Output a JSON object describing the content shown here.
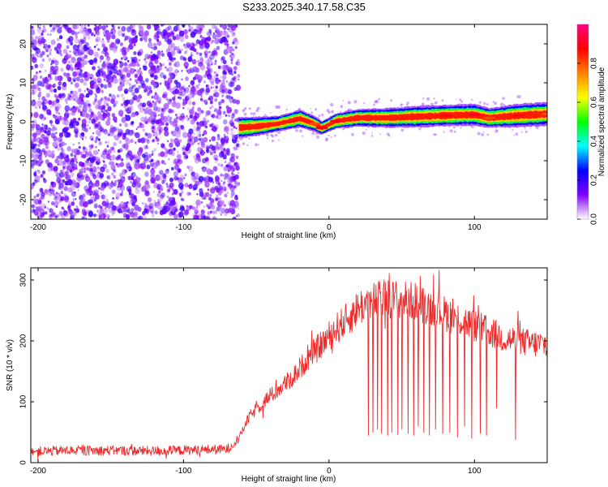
{
  "title": "S233.2025.340.17.58.C35",
  "chart_data": [
    {
      "type": "heatmap",
      "xlabel": "Height of straight line (km)",
      "ylabel": "Frequency (Hz)",
      "xlim": [
        -205,
        150
      ],
      "ylim": [
        -25,
        25
      ],
      "xticks": [
        -200,
        -100,
        0,
        100
      ],
      "yticks": [
        -20,
        -10,
        0,
        10,
        20
      ],
      "colorbar": {
        "label": "Normalized spectral amplitude",
        "ticks": [
          0.0,
          0.2,
          0.4,
          0.6,
          0.8
        ],
        "range": [
          0,
          1
        ],
        "colors": [
          "#ffffff",
          "#8000ff",
          "#0000ff",
          "#00ffff",
          "#00ff00",
          "#ffff00",
          "#ff8000",
          "#ff0000",
          "#ff0080"
        ]
      },
      "noise_region": {
        "x_from": -205,
        "x_to": -62,
        "y_from": -25,
        "y_to": 25,
        "amplitude_range": [
          0.05,
          0.2
        ]
      },
      "ridge": [
        {
          "x": -62,
          "freq": -1.5,
          "width": 2.2,
          "peak": 0.55
        },
        {
          "x": -50,
          "freq": -1.2,
          "width": 2.0,
          "peak": 0.6
        },
        {
          "x": -35,
          "freq": -0.5,
          "width": 1.6,
          "peak": 0.75
        },
        {
          "x": -20,
          "freq": 0.8,
          "width": 1.8,
          "peak": 0.85
        },
        {
          "x": -10,
          "freq": -0.5,
          "width": 1.6,
          "peak": 0.8
        },
        {
          "x": -5,
          "freq": -1.6,
          "width": 1.4,
          "peak": 0.9
        },
        {
          "x": 5,
          "freq": 0.2,
          "width": 1.6,
          "peak": 0.9
        },
        {
          "x": 20,
          "freq": 1.0,
          "width": 1.8,
          "peak": 0.85
        },
        {
          "x": 40,
          "freq": 1.0,
          "width": 2.0,
          "peak": 0.75
        },
        {
          "x": 60,
          "freq": 1.3,
          "width": 2.2,
          "peak": 0.7
        },
        {
          "x": 80,
          "freq": 1.6,
          "width": 2.2,
          "peak": 0.9
        },
        {
          "x": 100,
          "freq": 1.8,
          "width": 2.2,
          "peak": 0.9
        },
        {
          "x": 110,
          "freq": 1.0,
          "width": 2.0,
          "peak": 0.8
        },
        {
          "x": 130,
          "freq": 1.6,
          "width": 2.4,
          "peak": 0.9
        },
        {
          "x": 150,
          "freq": 2.0,
          "width": 2.4,
          "peak": 0.8
        }
      ]
    },
    {
      "type": "line",
      "xlabel": "Height of straight line (km)",
      "ylabel": "SNR (10 * v/v)",
      "xlim": [
        -205,
        150
      ],
      "ylim": [
        0,
        320
      ],
      "xticks": [
        -200,
        -100,
        0,
        100
      ],
      "yticks": [
        0,
        100,
        200,
        300
      ],
      "color": "#ee2a2a",
      "series": [
        {
          "name": "SNR",
          "x": [
            -205,
            -180,
            -150,
            -120,
            -90,
            -70,
            -62,
            -55,
            -45,
            -35,
            -25,
            -15,
            -5,
            5,
            15,
            20,
            30,
            40,
            50,
            60,
            70,
            80,
            90,
            100,
            110,
            120,
            130,
            140,
            150
          ],
          "values": [
            18,
            20,
            20,
            19,
            21,
            22,
            40,
            75,
            100,
            120,
            140,
            170,
            195,
            220,
            240,
            255,
            265,
            270,
            268,
            265,
            255,
            245,
            235,
            225,
            215,
            205,
            200,
            195,
            195
          ]
        }
      ],
      "dropouts": [
        {
          "x": 27,
          "value": 45
        },
        {
          "x": 30,
          "value": 50
        },
        {
          "x": 33,
          "value": 55
        },
        {
          "x": 36,
          "value": 48
        },
        {
          "x": 40,
          "value": 45
        },
        {
          "x": 43,
          "value": 50
        },
        {
          "x": 47,
          "value": 46
        },
        {
          "x": 50,
          "value": 55
        },
        {
          "x": 54,
          "value": 48
        },
        {
          "x": 58,
          "value": 45
        },
        {
          "x": 61,
          "value": 60
        },
        {
          "x": 65,
          "value": 50
        },
        {
          "x": 69,
          "value": 45
        },
        {
          "x": 73,
          "value": 55
        },
        {
          "x": 78,
          "value": 48
        },
        {
          "x": 83,
          "value": 50
        },
        {
          "x": 88,
          "value": 42
        },
        {
          "x": 93,
          "value": 60
        },
        {
          "x": 98,
          "value": 40
        },
        {
          "x": 104,
          "value": 48
        },
        {
          "x": 108,
          "value": 45
        },
        {
          "x": 115,
          "value": 90
        },
        {
          "x": 128,
          "value": 38
        }
      ]
    }
  ]
}
